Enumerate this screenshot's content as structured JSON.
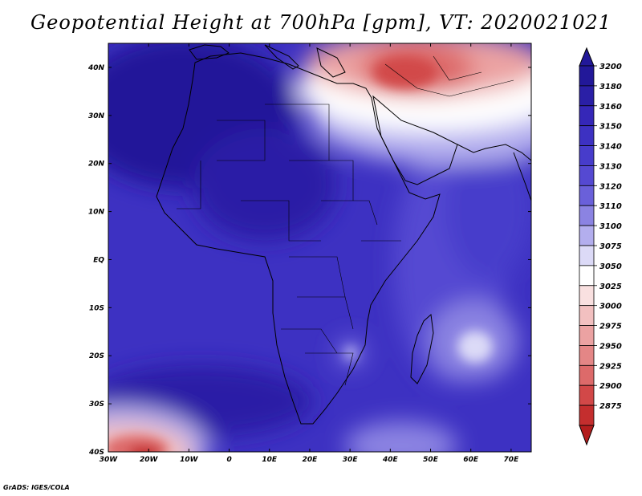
{
  "title": "Geopotential Height at 700hPa [gpm], VT: 2020021021",
  "footer": "GrADS: IGES/COLA",
  "map": {
    "lon_range": [
      -30,
      75
    ],
    "lat_range": [
      -40,
      45
    ],
    "lon_ticks": [
      {
        "lon": -30,
        "label": "30W"
      },
      {
        "lon": -20,
        "label": "20W"
      },
      {
        "lon": -10,
        "label": "10W"
      },
      {
        "lon": 0,
        "label": "0"
      },
      {
        "lon": 10,
        "label": "10E"
      },
      {
        "lon": 20,
        "label": "20E"
      },
      {
        "lon": 30,
        "label": "30E"
      },
      {
        "lon": 40,
        "label": "40E"
      },
      {
        "lon": 50,
        "label": "50E"
      },
      {
        "lon": 60,
        "label": "60E"
      },
      {
        "lon": 70,
        "label": "70E"
      }
    ],
    "lat_ticks": [
      {
        "lat": 40,
        "label": "40N"
      },
      {
        "lat": 30,
        "label": "30N"
      },
      {
        "lat": 20,
        "label": "20N"
      },
      {
        "lat": 10,
        "label": "10N"
      },
      {
        "lat": 0,
        "label": "EQ"
      },
      {
        "lat": -10,
        "label": "10S"
      },
      {
        "lat": -20,
        "label": "20S"
      },
      {
        "lat": -30,
        "label": "30S"
      },
      {
        "lat": -40,
        "label": "40S"
      }
    ]
  },
  "colorbar": {
    "levels": [
      {
        "label": "3200",
        "color": "#221899"
      },
      {
        "label": "3180",
        "color": "#2a1fa6"
      },
      {
        "label": "3160",
        "color": "#3527b8"
      },
      {
        "label": "3150",
        "color": "#3d31c2"
      },
      {
        "label": "3140",
        "color": "#473ccb"
      },
      {
        "label": "3130",
        "color": "#5549d2"
      },
      {
        "label": "3120",
        "color": "#6a60da"
      },
      {
        "label": "3110",
        "color": "#8b83e2"
      },
      {
        "label": "3100",
        "color": "#b3aeee"
      },
      {
        "label": "3075",
        "color": "#dcdaf7"
      },
      {
        "label": "3050",
        "color": "#ffffff"
      },
      {
        "label": "3025",
        "color": "#f9e0e0"
      },
      {
        "label": "3000",
        "color": "#f2c0c0"
      },
      {
        "label": "2975",
        "color": "#eba2a2"
      },
      {
        "label": "2950",
        "color": "#e48686"
      },
      {
        "label": "2925",
        "color": "#dd6a6a"
      },
      {
        "label": "2900",
        "color": "#d24848"
      },
      {
        "label": "2875",
        "color": "#c42e2e"
      }
    ],
    "top_arrow_color": "#221899",
    "bottom_arrow_color": "#b31d1d"
  }
}
